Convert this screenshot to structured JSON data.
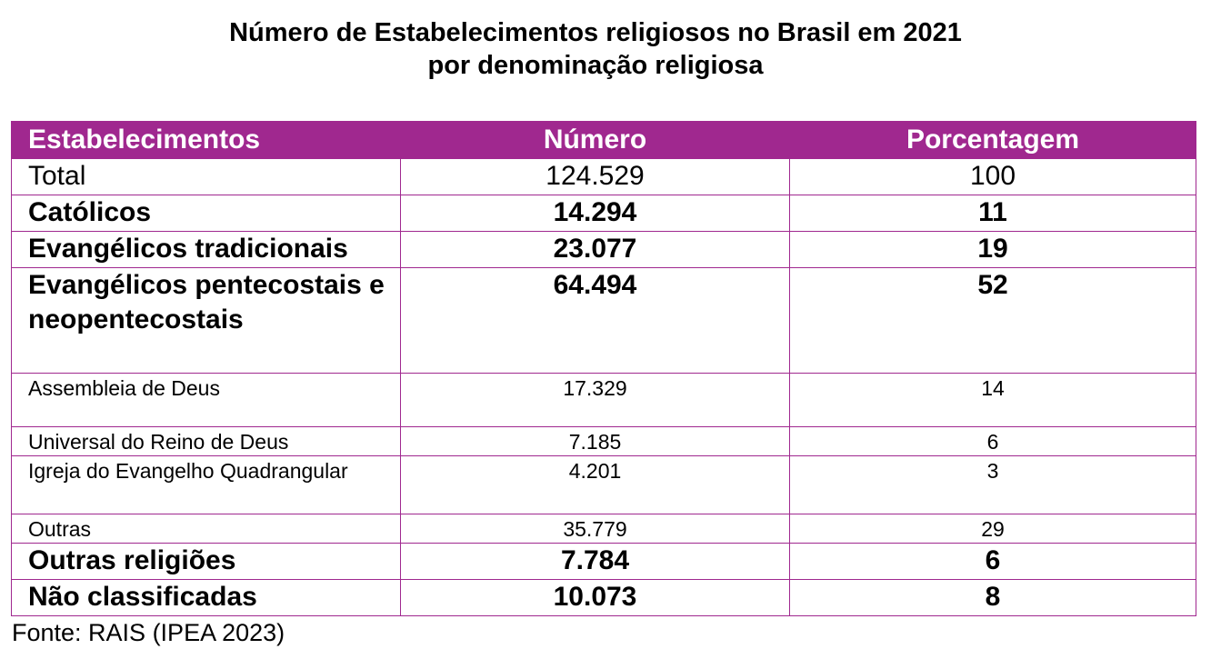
{
  "title_line1": "Número de Estabelecimentos religiosos no Brasil em 2021",
  "title_line2": "por denominação religiosa",
  "table": {
    "headers": [
      "Estabelecimentos",
      "Número",
      "Porcentagem"
    ],
    "rows": [
      {
        "label": "Total",
        "number": "124.529",
        "percent": "100"
      },
      {
        "label": "Católicos",
        "number": "14.294",
        "percent": "11"
      },
      {
        "label": "Evangélicos tradicionais",
        "number": "23.077",
        "percent": "19"
      },
      {
        "label": "Evangélicos pentecostais e neopentecostais",
        "number": "64.494",
        "percent": "52"
      },
      {
        "label": "Assembleia de Deus",
        "number": "17.329",
        "percent": "14"
      },
      {
        "label": "Universal do Reino de Deus",
        "number": "7.185",
        "percent": "6"
      },
      {
        "label": "Igreja do Evangelho Quadrangular",
        "number": "4.201",
        "percent": "3"
      },
      {
        "label": "Outras",
        "number": "35.779",
        "percent": "29"
      },
      {
        "label": "Outras religiões",
        "number": "7.784",
        "percent": "6"
      },
      {
        "label": "Não classificadas",
        "number": "10.073",
        "percent": "8"
      }
    ]
  },
  "source": "Fonte: RAIS (IPEA 2023)",
  "colors": {
    "header_bg": "#a0288f",
    "border": "#a0288f",
    "header_text": "#ffffff"
  }
}
